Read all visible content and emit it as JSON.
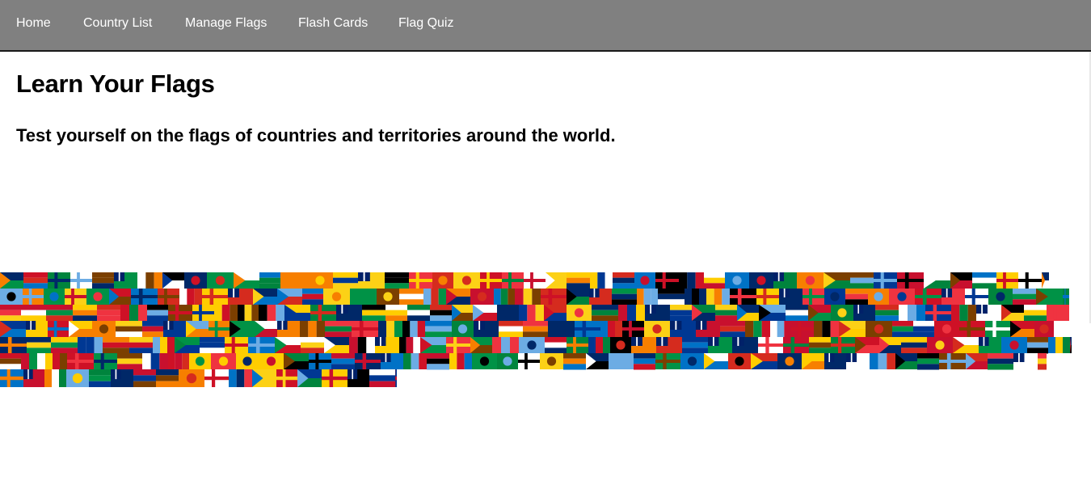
{
  "nav": {
    "items": [
      {
        "label": "Home"
      },
      {
        "label": "Country List"
      },
      {
        "label": "Manage Flags"
      },
      {
        "label": "Flash Cards"
      },
      {
        "label": "Flag Quiz"
      }
    ]
  },
  "main": {
    "title": "Learn Your Flags",
    "subtitle": "Test yourself on the flags of countries and territories around the world."
  },
  "flag_wall": {
    "colors": [
      "#c8102e",
      "#002868",
      "#ffffff",
      "#009246",
      "#ffcd00",
      "#000000",
      "#0072c6",
      "#f77f00",
      "#6cace4",
      "#d52b1e",
      "#00843d",
      "#ef3340",
      "#003893",
      "#fcd116",
      "#ce1126",
      "#7b3f00"
    ],
    "flag_count": 245
  }
}
